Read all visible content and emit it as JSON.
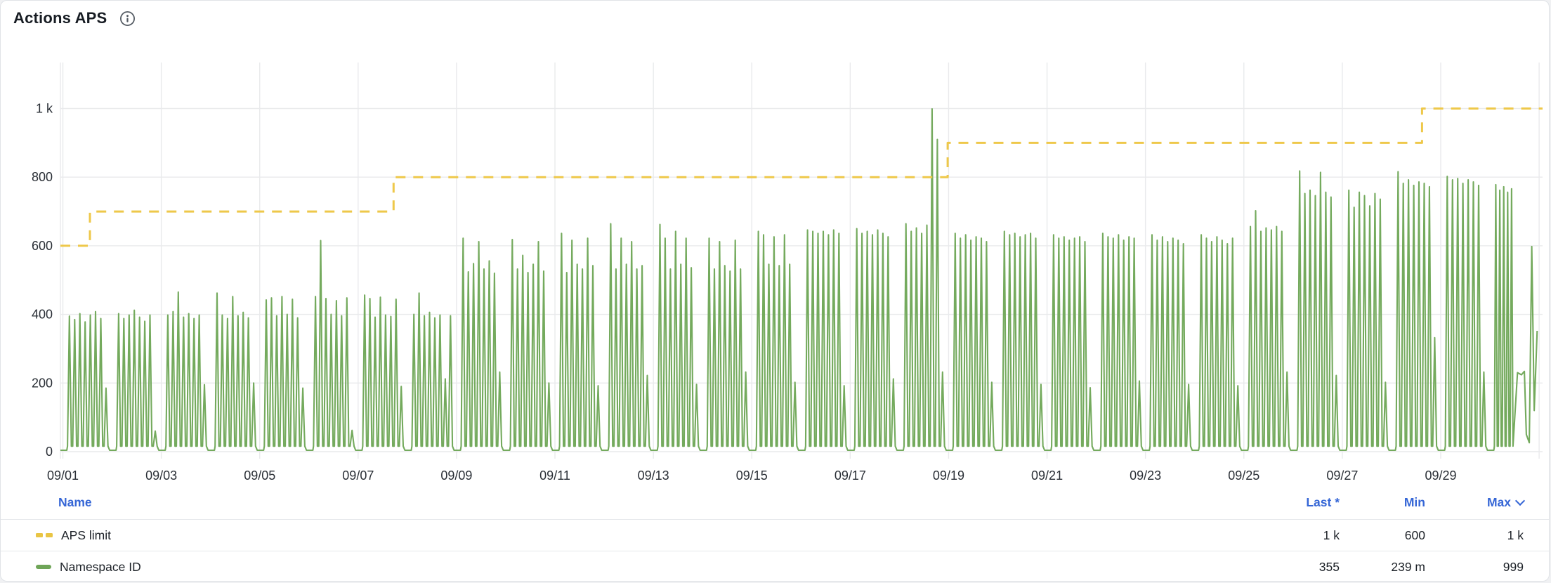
{
  "header": {
    "title": "Actions APS"
  },
  "colors": {
    "accent_blue": "#3566d6",
    "series_green": "#74aa5d",
    "series_yellow": "#eec84a",
    "grid": "#e9eaec",
    "axis_text": "#2a2f36",
    "title_text": "#171c23"
  },
  "chart_data": {
    "type": "line",
    "title": "Actions APS",
    "xlabel": "",
    "ylabel": "",
    "grid": true,
    "legend_position": "bottom-table",
    "x_domain_days": [
      -0.05,
      30.07
    ],
    "ylim": [
      0,
      1075
    ],
    "y_ticks": [
      {
        "value": 0,
        "label": "0"
      },
      {
        "value": 200,
        "label": "200"
      },
      {
        "value": 400,
        "label": "400"
      },
      {
        "value": 600,
        "label": "600"
      },
      {
        "value": 800,
        "label": "800"
      },
      {
        "value": 1000,
        "label": "1 k"
      }
    ],
    "x_ticks": [
      {
        "day": 0,
        "label": "09/01"
      },
      {
        "day": 2,
        "label": "09/03"
      },
      {
        "day": 4,
        "label": "09/05"
      },
      {
        "day": 6,
        "label": "09/07"
      },
      {
        "day": 8,
        "label": "09/09"
      },
      {
        "day": 10,
        "label": "09/11"
      },
      {
        "day": 12,
        "label": "09/13"
      },
      {
        "day": 14,
        "label": "09/15"
      },
      {
        "day": 16,
        "label": "09/17"
      },
      {
        "day": 18,
        "label": "09/19"
      },
      {
        "day": 20,
        "label": "09/21"
      },
      {
        "day": 22,
        "label": "09/23"
      },
      {
        "day": 24,
        "label": "09/25"
      },
      {
        "day": 26,
        "label": "09/27"
      },
      {
        "day": 28,
        "label": "09/29"
      }
    ],
    "extra_gridline_days": [
      30
    ],
    "series": [
      {
        "name": "APS limit",
        "type": "step",
        "style": "dashed",
        "color": "#eec84a",
        "points": [
          [
            -0.05,
            600
          ],
          [
            0.55,
            700
          ],
          [
            6.72,
            800
          ],
          [
            17.98,
            900
          ],
          [
            27.62,
            1000
          ]
        ],
        "end_x": 30.07,
        "stats": {
          "last": "1 k",
          "min": "600",
          "max": "1 k"
        }
      },
      {
        "name": "Namespace ID",
        "type": "daily-spikes",
        "style": "solid",
        "color": "#74aa5d",
        "base": 4,
        "valley": 16,
        "day_spikes": [
          [
            395,
            385,
            402,
            378,
            398,
            408,
            388,
            185
          ],
          [
            402,
            388,
            398,
            412,
            392,
            380,
            398,
            60
          ],
          [
            398,
            408,
            465,
            392,
            402,
            388,
            398,
            195
          ],
          [
            462,
            398,
            388,
            452,
            396,
            406,
            390,
            200
          ],
          [
            442,
            448,
            396,
            452,
            400,
            444,
            390,
            185
          ],
          [
            452,
            615,
            446,
            400,
            440,
            396,
            448,
            62
          ],
          [
            456,
            446,
            392,
            450,
            398,
            394,
            444,
            190
          ],
          [
            400,
            462,
            396,
            406,
            390,
            398,
            212,
            396
          ],
          [
            622,
            524,
            548,
            612,
            532,
            556,
            520,
            232
          ],
          [
            618,
            532,
            572,
            522,
            546,
            612,
            526,
            200
          ],
          [
            636,
            522,
            616,
            546,
            532,
            622,
            542,
            192
          ],
          [
            664,
            532,
            622,
            546,
            612,
            532,
            542,
            222
          ],
          [
            662,
            622,
            532,
            642,
            546,
            622,
            536,
            196
          ],
          [
            622,
            532,
            612,
            542,
            526,
            616,
            532,
            232
          ],
          [
            642,
            632,
            546,
            626,
            542,
            632,
            546,
            202
          ],
          [
            646,
            642,
            636,
            642,
            632,
            646,
            636,
            192
          ],
          [
            650,
            636,
            642,
            632,
            646,
            636,
            626,
            212
          ],
          [
            664,
            642,
            652,
            636,
            660,
            999,
            910,
            232
          ],
          [
            636,
            622,
            632,
            616,
            626,
            622,
            612,
            202
          ],
          [
            642,
            632,
            636,
            626,
            632,
            636,
            622,
            196
          ],
          [
            632,
            622,
            626,
            616,
            622,
            626,
            612,
            186
          ],
          [
            636,
            626,
            622,
            632,
            616,
            626,
            622,
            206
          ],
          [
            632,
            616,
            626,
            612,
            622,
            616,
            606,
            196
          ],
          [
            632,
            622,
            612,
            626,
            616,
            606,
            622,
            192
          ],
          [
            656,
            702,
            642,
            652,
            646,
            656,
            642,
            232
          ],
          [
            818,
            752,
            762,
            746,
            814,
            756,
            742,
            222
          ],
          [
            762,
            712,
            756,
            746,
            716,
            752,
            736,
            202
          ],
          [
            816,
            782,
            792,
            776,
            786,
            782,
            772,
            332
          ],
          [
            802,
            792,
            796,
            782,
            792,
            786,
            776,
            232
          ],
          [
            778,
            762,
            772,
            756,
            766
          ]
        ],
        "tail_day_span_end": 0.48,
        "tail": [
          [
            29.56,
            230
          ],
          [
            29.64,
            224
          ],
          [
            29.7,
            234
          ],
          [
            29.74,
            50
          ],
          [
            29.8,
            26
          ],
          [
            29.85,
            598
          ],
          [
            29.9,
            120
          ],
          [
            29.96,
            352
          ]
        ],
        "stats": {
          "last": "355",
          "min": "239 m",
          "max": "999"
        }
      }
    ]
  },
  "legend": {
    "columns": {
      "name": "Name",
      "last": "Last *",
      "min": "Min",
      "max": "Max"
    },
    "sort_column": "max",
    "sort_direction": "desc",
    "rows": [
      {
        "name": "APS limit",
        "swatch": "dashed-yellow",
        "last": "1 k",
        "min": "600",
        "max": "1 k"
      },
      {
        "name": "Namespace ID",
        "swatch": "solid-green",
        "last": "355",
        "min": "239 m",
        "max": "999"
      }
    ]
  }
}
